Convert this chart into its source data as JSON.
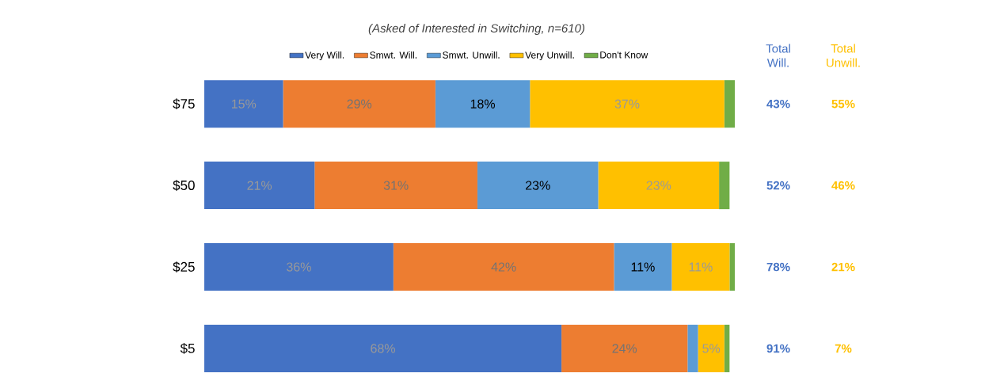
{
  "chart_data": {
    "type": "bar",
    "orientation": "horizontal",
    "stacked": true,
    "title": "(Asked of Interested in Switching, n=610)",
    "categories": [
      "$75",
      "$50",
      "$25",
      "$5"
    ],
    "series": [
      {
        "name": "Very Will.",
        "color": "#4472c4",
        "values": [
          15,
          21,
          36,
          68
        ],
        "value_labels": [
          "15%",
          "21%",
          "36%",
          "68%"
        ]
      },
      {
        "name": "Smwt. Will.",
        "color": "#ed7d31",
        "values": [
          29,
          31,
          42,
          24
        ],
        "value_labels": [
          "29%",
          "31%",
          "42%",
          "24%"
        ]
      },
      {
        "name": "Smwt. Unwill.",
        "color": "#5b9bd5",
        "values": [
          18,
          23,
          11,
          2
        ],
        "value_labels": [
          "18%",
          "23%",
          "11%",
          null
        ]
      },
      {
        "name": "Very Unwill.",
        "color": "#ffc000",
        "values": [
          37,
          23,
          11,
          5
        ],
        "value_labels": [
          "37%",
          "23%",
          "11%",
          "5%"
        ]
      },
      {
        "name": "Don't Know",
        "color": "#70ad47",
        "values": [
          2,
          2,
          1,
          1
        ],
        "value_labels": [
          null,
          null,
          null,
          null
        ]
      }
    ],
    "legend": "top",
    "annotations": [
      "Total Will.",
      "Total Unwill.",
      "43%",
      "55%",
      "52%",
      "46%",
      "78%",
      "21%",
      "91%",
      "7%"
    ]
  }
}
